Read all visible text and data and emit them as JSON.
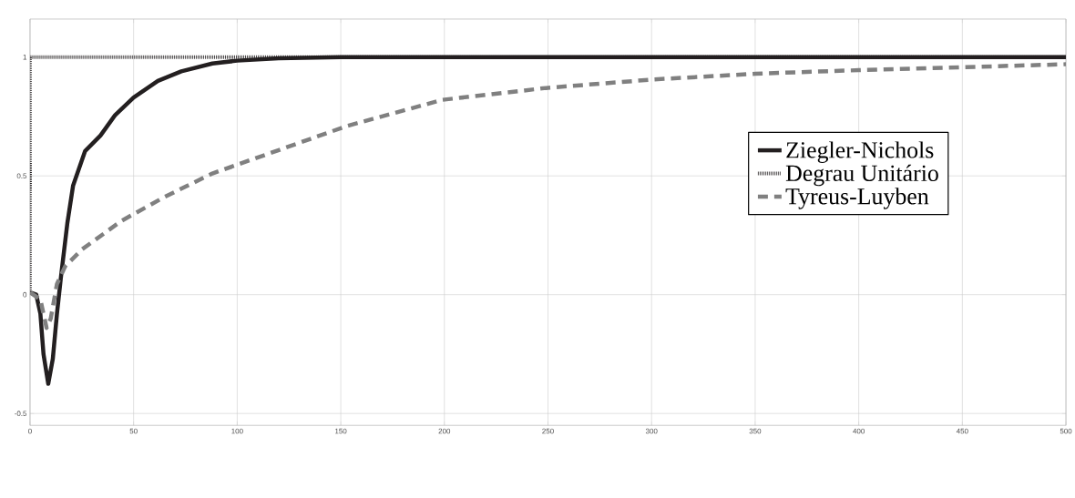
{
  "chart_data": {
    "type": "line",
    "xlim": [
      0,
      500
    ],
    "ylim": [
      -0.55,
      1.16
    ],
    "xticks": [
      0,
      50,
      100,
      150,
      200,
      250,
      300,
      350,
      400,
      450,
      500
    ],
    "yticks": [
      -0.5,
      0,
      0.5,
      1
    ],
    "grid": true,
    "legend": "right",
    "series": [
      {
        "name": "Ziegler-Nichols",
        "color": "#231f20",
        "line_style": "solid",
        "x": [
          0,
          3,
          5,
          6.5,
          8.8,
          11,
          13,
          15,
          18,
          20.8,
          26.6,
          34,
          41,
          50,
          61.7,
          73,
          88,
          100,
          120,
          150,
          500
        ],
        "values": [
          0.01,
          0,
          -0.08,
          -0.25,
          -0.375,
          -0.27,
          -0.08,
          0.08,
          0.3,
          0.46,
          0.605,
          0.67,
          0.755,
          0.83,
          0.9,
          0.94,
          0.973,
          0.985,
          0.995,
          1,
          1
        ]
      },
      {
        "name": "Degrau Unitário",
        "color": "#231f20",
        "line_style": "dotted",
        "x": [
          0,
          0,
          500
        ],
        "values": [
          0,
          1,
          1
        ]
      },
      {
        "name": "Tyreus-Luyben",
        "color": "#808080",
        "line_style": "dashed",
        "x": [
          0,
          5,
          8,
          10,
          13,
          17,
          25,
          44,
          64.6,
          88,
          114,
          153,
          199,
          249,
          301,
          350,
          400,
          500
        ],
        "values": [
          0.01,
          -0.02,
          -0.14,
          -0.1,
          0.045,
          0.12,
          0.19,
          0.31,
          0.41,
          0.51,
          0.59,
          0.71,
          0.82,
          0.87,
          0.906,
          0.93,
          0.945,
          0.97
        ]
      }
    ]
  }
}
